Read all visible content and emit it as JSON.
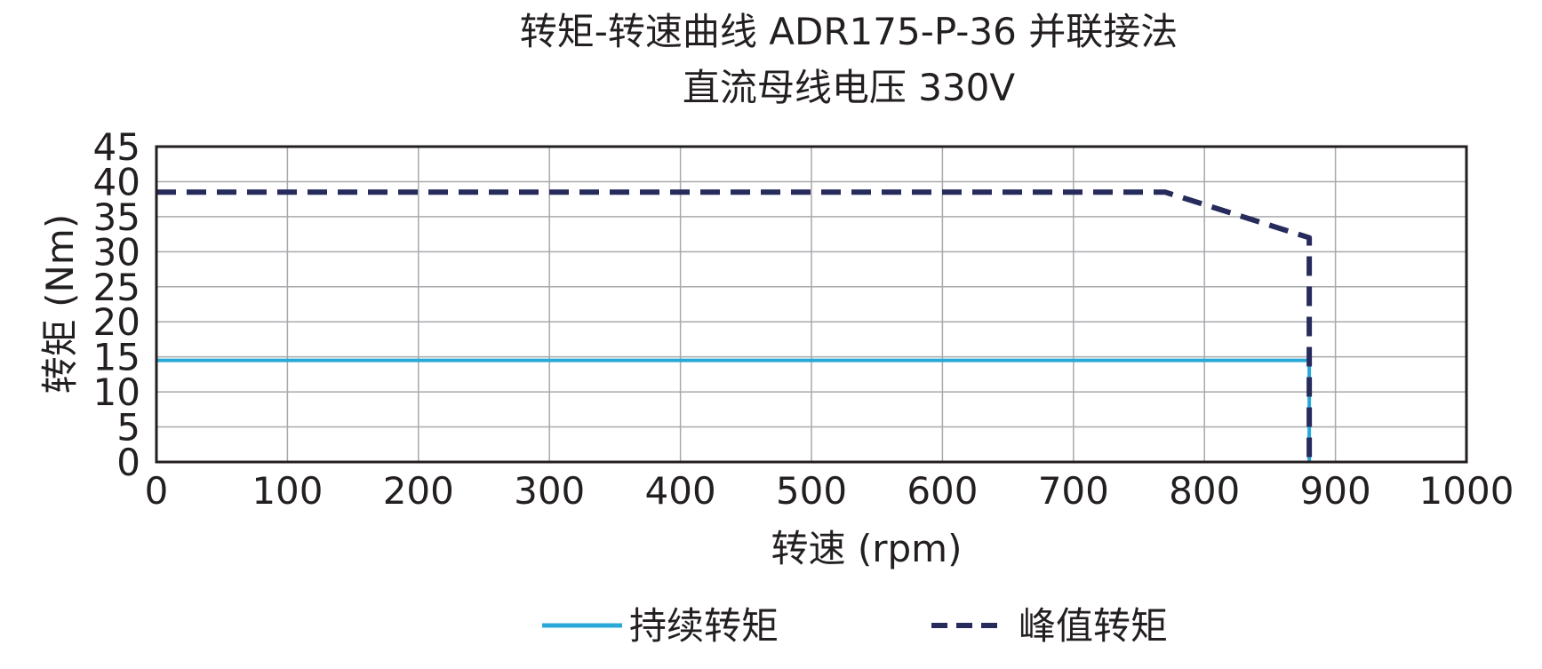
{
  "chart_data": {
    "type": "line",
    "title": "转矩-转速曲线 ADR175-P-36 并联接法",
    "subtitle": "直流母线电压 330V",
    "xlabel": "转速 (rpm)",
    "ylabel": "转矩 (Nm)",
    "xlim": [
      0,
      1000
    ],
    "ylim": [
      0,
      45
    ],
    "x_ticks": [
      "0",
      "100",
      "200",
      "300",
      "400",
      "500",
      "600",
      "700",
      "800",
      "900",
      "1000"
    ],
    "y_ticks": [
      "0",
      "5",
      "10",
      "15",
      "20",
      "25",
      "30",
      "35",
      "40",
      "45"
    ],
    "grid": true,
    "legend_position": "bottom",
    "series": [
      {
        "name": "持续转矩",
        "style": "solid",
        "color": "#29a9d8",
        "x": [
          0,
          880,
          880
        ],
        "y": [
          14.5,
          14.5,
          0
        ]
      },
      {
        "name": "峰值转矩",
        "style": "dashed",
        "color": "#272b5c",
        "x": [
          0,
          770,
          880,
          880
        ],
        "y": [
          38.5,
          38.5,
          32,
          0
        ]
      }
    ]
  }
}
